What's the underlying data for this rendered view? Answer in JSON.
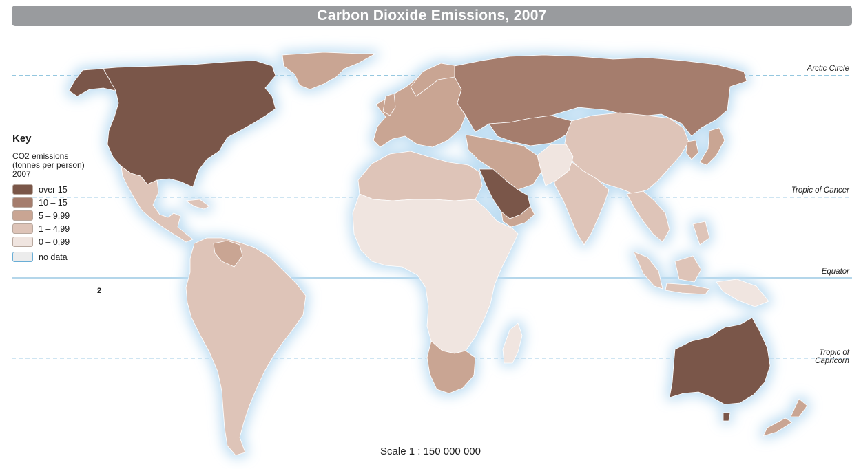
{
  "title": "Carbon Dioxide Emissions, 2007",
  "key": {
    "title": "Key",
    "caption_line1": "CO2 emissions",
    "caption_line2": "(tonnes per person)",
    "caption_line3": "2007",
    "items": [
      {
        "label": "over 15",
        "color": "#7a5648"
      },
      {
        "label": "10 – 15",
        "color": "#a57d6d"
      },
      {
        "label": "5 – 9,99",
        "color": "#c9a593"
      },
      {
        "label": "1 – 4,99",
        "color": "#dec4b8"
      },
      {
        "label": "0 – 0,99",
        "color": "#f0e5e0"
      },
      {
        "label": "no data",
        "color": "#ececec"
      }
    ]
  },
  "latitudes": {
    "arctic": "Arctic Circle",
    "cancer": "Tropic of Cancer",
    "equator": "Equator",
    "capricorn_line1": "Tropic of",
    "capricorn_line2": "Capricorn"
  },
  "scale": "Scale 1 : 150 000 000",
  "footnote": "2",
  "colors": {
    "ocean": "#ffffff",
    "glow": "#bcdcf2",
    "border": "#ffffff",
    "arctic_line": "#2a8fbf",
    "tropic_line": "#9fcbe6",
    "equator_line": "#6aaed6",
    "title_bar": "#999b9e"
  },
  "regions": [
    {
      "name": "North America (USA, Canada)",
      "band": "over 15"
    },
    {
      "name": "Greenland",
      "band": "5 – 9,99"
    },
    {
      "name": "Mexico & Central America",
      "band": "1 – 4,99"
    },
    {
      "name": "South America",
      "band": "1 – 4,99"
    },
    {
      "name": "Venezuela",
      "band": "5 – 9,99"
    },
    {
      "name": "Europe",
      "band": "5 – 9,99"
    },
    {
      "name": "Russia",
      "band": "10 – 15"
    },
    {
      "name": "North Africa",
      "band": "1 – 4,99"
    },
    {
      "name": "Sub-Saharan Africa",
      "band": "0 – 0,99"
    },
    {
      "name": "South Africa",
      "band": "5 – 9,99"
    },
    {
      "name": "Saudi Arabia & Gulf",
      "band": "over 15"
    },
    {
      "name": "Iran & Middle East",
      "band": "5 – 9,99"
    },
    {
      "name": "Kazakhstan",
      "band": "10 – 15"
    },
    {
      "name": "China & East Asia",
      "band": "1 – 4,99"
    },
    {
      "name": "Korea & Japan",
      "band": "5 – 9,99"
    },
    {
      "name": "India",
      "band": "1 – 4,99"
    },
    {
      "name": "Southeast Asia",
      "band": "1 – 4,99"
    },
    {
      "name": "Australia",
      "band": "over 15"
    },
    {
      "name": "New Zealand",
      "band": "5 – 9,99"
    },
    {
      "name": "Madagascar",
      "band": "0 – 0,99"
    }
  ]
}
